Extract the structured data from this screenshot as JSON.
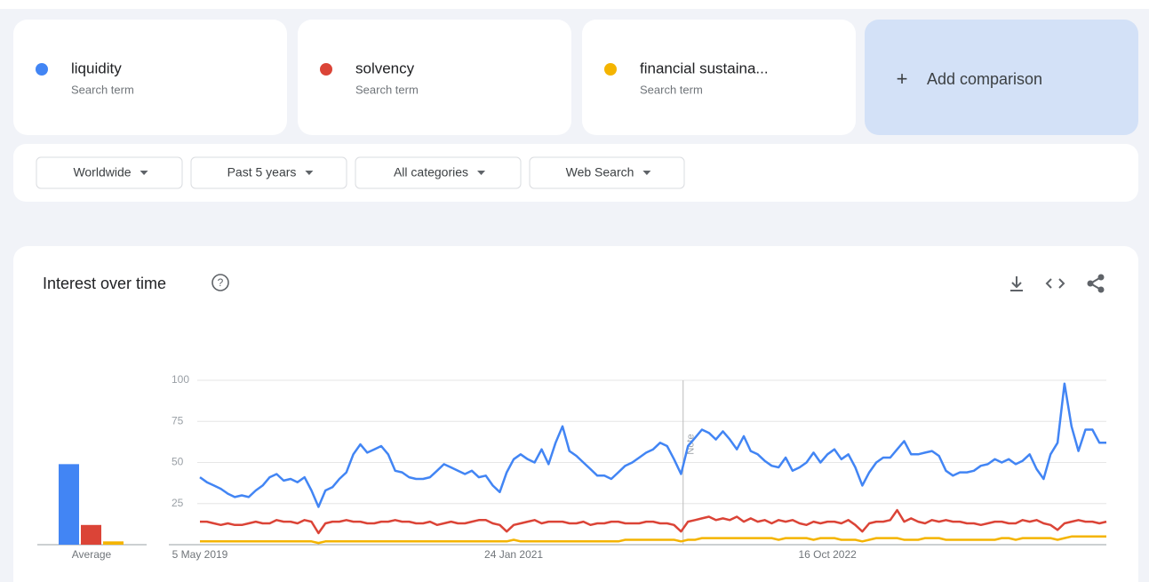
{
  "search_term_label": "Search term",
  "add_comparison": "Add comparison",
  "filters": [
    "Worldwide",
    "Past 5 years",
    "All categories",
    "Web Search"
  ],
  "chart_data": {
    "type": "line",
    "title": "Interest over time",
    "note": "Note",
    "average_label": "Average",
    "averages": [
      49,
      12,
      2
    ],
    "ylim": [
      0,
      100
    ],
    "yticks": [
      25,
      50,
      75,
      100
    ],
    "grid": true,
    "categories": [
      "5 May 2019",
      null,
      null,
      null,
      null,
      null,
      null,
      null,
      null,
      null,
      null,
      null,
      null,
      null,
      null,
      null,
      null,
      null,
      null,
      null,
      null,
      null,
      null,
      null,
      null,
      null,
      null,
      null,
      null,
      null,
      null,
      null,
      null,
      null,
      null,
      null,
      null,
      null,
      null,
      null,
      null,
      null,
      null,
      null,
      null,
      "24 Jan 2021",
      null,
      null,
      null,
      null,
      null,
      null,
      null,
      null,
      null,
      null,
      null,
      null,
      null,
      null,
      null,
      null,
      null,
      null,
      null,
      null,
      null,
      null,
      null,
      null,
      null,
      null,
      null,
      null,
      null,
      null,
      null,
      null,
      null,
      null,
      null,
      null,
      null,
      null,
      null,
      null,
      null,
      null,
      null,
      null,
      "16 Oct 2022",
      null,
      null,
      null,
      null,
      null,
      null,
      null,
      null,
      null,
      null,
      null,
      null,
      null,
      null,
      null,
      null,
      null,
      null,
      null,
      null,
      null,
      null,
      null,
      null,
      null,
      null,
      null,
      null,
      null,
      null,
      null,
      null,
      null,
      null,
      null,
      null,
      null,
      null,
      null,
      null
    ],
    "series": [
      {
        "name": "liquidity",
        "color": "#4285f4",
        "values": [
          41,
          38,
          36,
          34,
          31,
          29,
          30,
          29,
          33,
          36,
          41,
          43,
          39,
          40,
          38,
          41,
          33,
          23,
          33,
          35,
          40,
          44,
          55,
          61,
          56,
          58,
          60,
          55,
          45,
          44,
          41,
          40,
          40,
          41,
          45,
          49,
          47,
          45,
          43,
          45,
          41,
          42,
          36,
          32,
          44,
          52,
          55,
          52,
          50,
          58,
          49,
          62,
          72,
          57,
          54,
          50,
          46,
          42,
          42,
          40,
          44,
          48,
          50,
          53,
          56,
          58,
          62,
          60,
          52,
          43,
          60,
          65,
          70,
          68,
          64,
          69,
          64,
          58,
          66,
          57,
          55,
          51,
          48,
          47,
          53,
          45,
          47,
          50,
          56,
          50,
          55,
          58,
          52,
          55,
          47,
          36,
          44,
          50,
          53,
          53,
          58,
          63,
          55,
          55,
          56,
          57,
          54,
          45,
          42,
          44,
          44,
          45,
          48,
          49,
          52,
          50,
          52,
          49,
          51,
          55,
          46,
          40,
          55,
          62,
          98,
          72,
          57,
          70,
          70,
          62,
          62
        ]
      },
      {
        "name": "solvency",
        "color": "#db4437",
        "values": [
          14,
          14,
          13,
          12,
          13,
          12,
          12,
          13,
          14,
          13,
          13,
          15,
          14,
          14,
          13,
          15,
          14,
          7,
          13,
          14,
          14,
          15,
          14,
          14,
          13,
          13,
          14,
          14,
          15,
          14,
          14,
          13,
          13,
          14,
          12,
          13,
          14,
          13,
          13,
          14,
          15,
          15,
          13,
          12,
          8,
          12,
          13,
          14,
          15,
          13,
          14,
          14,
          14,
          13,
          13,
          14,
          12,
          13,
          13,
          14,
          14,
          13,
          13,
          13,
          14,
          14,
          13,
          13,
          12,
          8,
          14,
          15,
          16,
          17,
          15,
          16,
          15,
          17,
          14,
          16,
          14,
          15,
          13,
          15,
          14,
          15,
          13,
          12,
          14,
          13,
          14,
          14,
          13,
          15,
          12,
          8,
          13,
          14,
          14,
          15,
          21,
          14,
          16,
          14,
          13,
          15,
          14,
          15,
          14,
          14,
          13,
          13,
          12,
          13,
          14,
          14,
          13,
          13,
          15,
          14,
          15,
          13,
          12,
          9,
          13,
          14,
          15,
          14,
          14,
          13,
          14
        ]
      },
      {
        "name": "financial sustaina...",
        "color": "#f4b400",
        "values": [
          2,
          2,
          2,
          2,
          2,
          2,
          2,
          2,
          2,
          2,
          2,
          2,
          2,
          2,
          2,
          2,
          2,
          1,
          2,
          2,
          2,
          2,
          2,
          2,
          2,
          2,
          2,
          2,
          2,
          2,
          2,
          2,
          2,
          2,
          2,
          2,
          2,
          2,
          2,
          2,
          2,
          2,
          2,
          2,
          2,
          3,
          2,
          2,
          2,
          2,
          2,
          2,
          2,
          2,
          2,
          2,
          2,
          2,
          2,
          2,
          2,
          3,
          3,
          3,
          3,
          3,
          3,
          3,
          3,
          2,
          3,
          3,
          4,
          4,
          4,
          4,
          4,
          4,
          4,
          4,
          4,
          4,
          4,
          3,
          4,
          4,
          4,
          4,
          3,
          4,
          4,
          4,
          3,
          3,
          3,
          2,
          3,
          4,
          4,
          4,
          4,
          3,
          3,
          3,
          4,
          4,
          4,
          3,
          3,
          3,
          3,
          3,
          3,
          3,
          3,
          4,
          4,
          3,
          4,
          4,
          4,
          4,
          4,
          3,
          4,
          5,
          5,
          5,
          5,
          5,
          5
        ]
      }
    ]
  }
}
